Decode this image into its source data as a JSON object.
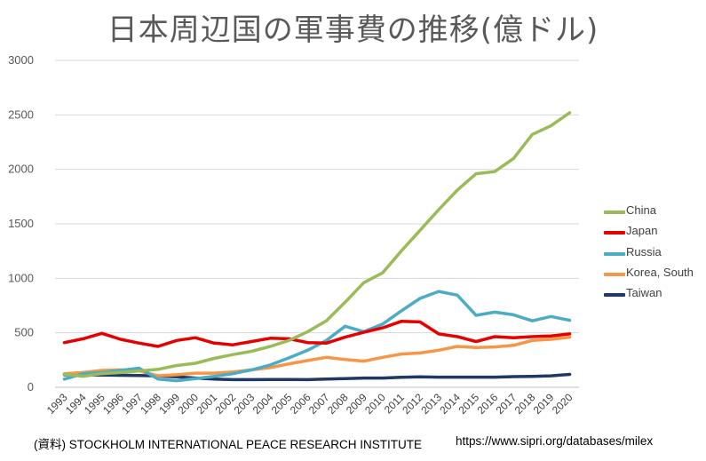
{
  "title": "日本周辺国の軍事費の推移(億ドル)",
  "source": "(資料) STOCKHOLM INTERNATIONAL PEACE RESEARCH INSTITUTE",
  "url": "https://www.sipri.org/databases/milex",
  "chart_data": {
    "type": "line",
    "title": "日本周辺国の軍事費の推移(億ドル)",
    "xlabel": "",
    "ylabel": "",
    "ylim": [
      0,
      3000
    ],
    "yticks": [
      0,
      500,
      1000,
      1500,
      2000,
      2500,
      3000
    ],
    "grid": "horizontal",
    "legend_position": "right",
    "categories": [
      "1993",
      "1994",
      "1995",
      "1996",
      "1997",
      "1998",
      "1999",
      "2000",
      "2001",
      "2002",
      "2003",
      "2004",
      "2005",
      "2006",
      "2007",
      "2008",
      "2009",
      "2010",
      "2011",
      "2012",
      "2013",
      "2014",
      "2015",
      "2016",
      "2017",
      "2018",
      "2019",
      "2020"
    ],
    "series": [
      {
        "name": "China",
        "color": "#9BBB59",
        "values": [
          120,
          100,
          125,
          135,
          150,
          165,
          200,
          220,
          265,
          300,
          330,
          375,
          430,
          510,
          610,
          780,
          960,
          1050,
          1250,
          1440,
          1630,
          1810,
          1960,
          1980,
          2100,
          2320,
          2400,
          2520
        ]
      },
      {
        "name": "Japan",
        "color": "#E60000",
        "values": [
          410,
          445,
          495,
          440,
          405,
          375,
          430,
          455,
          405,
          390,
          420,
          450,
          445,
          410,
          405,
          460,
          505,
          545,
          605,
          600,
          490,
          465,
          420,
          465,
          455,
          465,
          470,
          490
        ]
      },
      {
        "name": "Russia",
        "color": "#4BACC6",
        "values": [
          75,
          125,
          135,
          155,
          175,
          75,
          60,
          80,
          100,
          125,
          160,
          205,
          270,
          340,
          430,
          560,
          510,
          580,
          700,
          815,
          880,
          845,
          660,
          690,
          665,
          610,
          650,
          615
        ]
      },
      {
        "name": "Korea, South",
        "color": "#F79646",
        "values": [
          125,
          135,
          155,
          160,
          150,
          105,
          115,
          130,
          130,
          140,
          160,
          180,
          215,
          245,
          275,
          255,
          240,
          275,
          305,
          315,
          340,
          375,
          365,
          370,
          385,
          430,
          440,
          460
        ]
      },
      {
        "name": "Taiwan",
        "color": "#1F3864",
        "values": [
          115,
          112,
          112,
          110,
          108,
          105,
          95,
          85,
          75,
          70,
          70,
          72,
          72,
          70,
          75,
          80,
          85,
          85,
          92,
          95,
          93,
          93,
          93,
          93,
          98,
          100,
          105,
          118
        ]
      }
    ]
  }
}
